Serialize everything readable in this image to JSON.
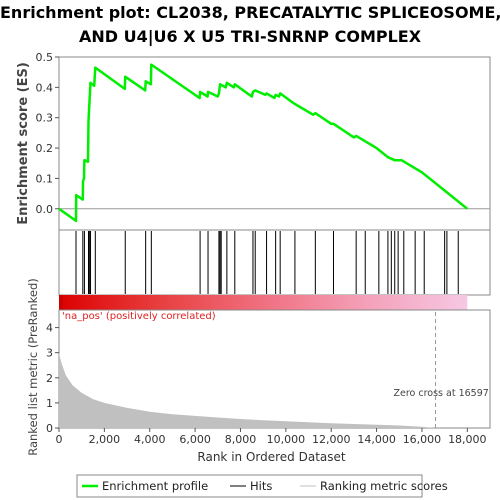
{
  "chart_data": {
    "type": "line",
    "title_lines": [
      "Enrichment plot: CL2038, PRECATALYTIC SPLICEOSOME,",
      "AND U4|U6 X U5 TRI-SNRNP COMPLEX"
    ],
    "xlabel": "Rank in Ordered Dataset",
    "xlim": [
      0,
      19000
    ],
    "x_ticks": [
      0,
      2000,
      4000,
      6000,
      8000,
      10000,
      12000,
      14000,
      16000,
      18000
    ],
    "x_tick_labels": [
      "0",
      "2,000",
      "4,000",
      "6,000",
      "8,000",
      "10,000",
      "12,000",
      "14,000",
      "16,000",
      "18,000"
    ],
    "es_panel": {
      "ylabel": "Enrichment score (ES)",
      "ylim": [
        -0.07,
        0.5
      ],
      "y_ticks": [
        0.0,
        0.1,
        0.2,
        0.3,
        0.4,
        0.5
      ],
      "y_tick_labels": [
        "0.0",
        "0.1",
        "0.2",
        "0.3",
        "0.4",
        "0.5"
      ],
      "series_color": "#00ee00",
      "profile": [
        [
          0,
          0.0
        ],
        [
          750,
          -0.04
        ],
        [
          760,
          0.045
        ],
        [
          1050,
          0.03
        ],
        [
          1060,
          0.09
        ],
        [
          1100,
          0.1
        ],
        [
          1120,
          0.16
        ],
        [
          1280,
          0.155
        ],
        [
          1300,
          0.29
        ],
        [
          1350,
          0.36
        ],
        [
          1390,
          0.415
        ],
        [
          1550,
          0.405
        ],
        [
          1600,
          0.465
        ],
        [
          2900,
          0.395
        ],
        [
          2920,
          0.435
        ],
        [
          3800,
          0.39
        ],
        [
          3820,
          0.42
        ],
        [
          4050,
          0.41
        ],
        [
          4070,
          0.475
        ],
        [
          6200,
          0.365
        ],
        [
          6220,
          0.385
        ],
        [
          6550,
          0.37
        ],
        [
          6570,
          0.385
        ],
        [
          7000,
          0.37
        ],
        [
          7050,
          0.38
        ],
        [
          7100,
          0.41
        ],
        [
          7350,
          0.4
        ],
        [
          7400,
          0.415
        ],
        [
          7700,
          0.4
        ],
        [
          7750,
          0.41
        ],
        [
          8500,
          0.37
        ],
        [
          8550,
          0.385
        ],
        [
          8650,
          0.39
        ],
        [
          9100,
          0.375
        ],
        [
          9150,
          0.38
        ],
        [
          9500,
          0.365
        ],
        [
          9550,
          0.375
        ],
        [
          9700,
          0.37
        ],
        [
          9750,
          0.38
        ],
        [
          10300,
          0.35
        ],
        [
          10400,
          0.345
        ],
        [
          11200,
          0.31
        ],
        [
          11300,
          0.315
        ],
        [
          12000,
          0.28
        ],
        [
          12100,
          0.28
        ],
        [
          13000,
          0.235
        ],
        [
          13100,
          0.24
        ],
        [
          14000,
          0.2
        ],
        [
          14500,
          0.17
        ],
        [
          14800,
          0.16
        ],
        [
          15100,
          0.16
        ],
        [
          16000,
          0.12
        ],
        [
          17000,
          0.06
        ],
        [
          18000,
          0.0
        ]
      ]
    },
    "hits_panel": {
      "positions": [
        750,
        1050,
        1120,
        1300,
        1350,
        1390,
        1600,
        2920,
        3820,
        4070,
        6220,
        6570,
        7050,
        7100,
        7150,
        7400,
        7750,
        8550,
        8650,
        9150,
        9550,
        9750,
        10400,
        11300,
        12100,
        13100,
        13500,
        14100,
        14500,
        14650,
        14800,
        14950,
        15200,
        15700,
        16100,
        17000,
        17100,
        17600
      ],
      "bar_color": "#000000"
    },
    "gradient_bar": {
      "colors": [
        "#dd0000",
        "#e84040",
        "#f07080",
        "#f4a0b8",
        "#f6c8e4"
      ]
    },
    "metric_panel": {
      "ylabel": "Ranked list metric (PreRanked)",
      "ylim": [
        0,
        4.7
      ],
      "y_ticks": [
        0,
        1,
        2,
        3,
        4
      ],
      "y_tick_labels": [
        "0",
        "1",
        "2",
        "3",
        "4"
      ],
      "positive_label": "'na_pos' (positively correlated)",
      "zero_cross_label": "Zero cross at 16597",
      "zero_cross": 16597,
      "fill_color": "#c0c0c0",
      "metric_curve": [
        [
          0,
          3.0
        ],
        [
          100,
          2.6
        ],
        [
          300,
          2.1
        ],
        [
          600,
          1.7
        ],
        [
          1000,
          1.4
        ],
        [
          1500,
          1.15
        ],
        [
          2000,
          1.0
        ],
        [
          3000,
          0.8
        ],
        [
          4000,
          0.65
        ],
        [
          5000,
          0.55
        ],
        [
          6000,
          0.48
        ],
        [
          7000,
          0.42
        ],
        [
          8000,
          0.36
        ],
        [
          9000,
          0.31
        ],
        [
          10000,
          0.27
        ],
        [
          11000,
          0.23
        ],
        [
          12000,
          0.19
        ],
        [
          13000,
          0.16
        ],
        [
          14000,
          0.13
        ],
        [
          15000,
          0.1
        ],
        [
          16000,
          0.05
        ],
        [
          16597,
          0.0
        ]
      ]
    },
    "legend": {
      "placement": "bottom",
      "entries": [
        {
          "label": "Enrichment profile",
          "color": "#00ee00",
          "kind": "line"
        },
        {
          "label": "Hits",
          "color": "#000000",
          "kind": "line"
        },
        {
          "label": "Ranking metric scores",
          "color": "#c0c0c0",
          "kind": "line"
        }
      ]
    }
  }
}
